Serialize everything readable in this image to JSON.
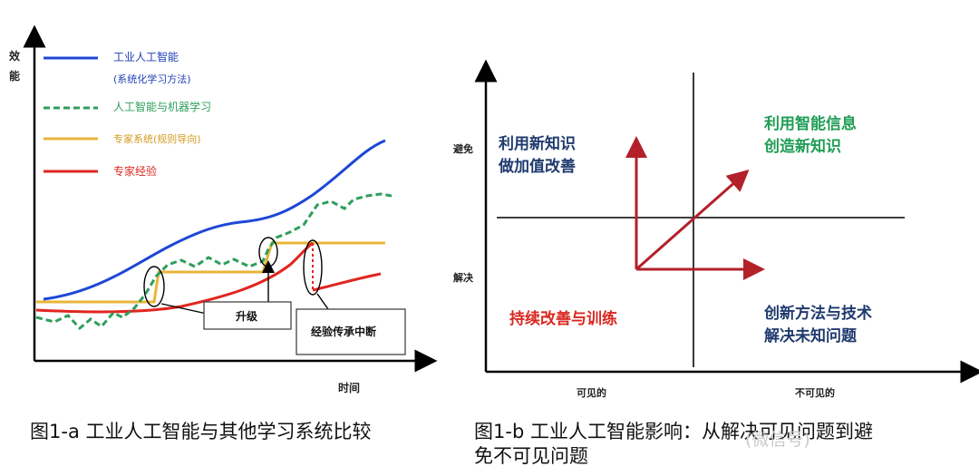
{
  "left": {
    "y_axis_label": [
      "效",
      "能"
    ],
    "x_axis_label": "时间",
    "legend": [
      {
        "label": "工业人工智能",
        "sub": "(系统化学习方法)",
        "color": "#1f47d6",
        "dashed": false
      },
      {
        "label": "人工智能与机器学习",
        "sub": "",
        "color": "#2e9e5b",
        "dashed": true
      },
      {
        "label": "专家系统(规则导向)",
        "sub": "",
        "color": "#e8b53a",
        "dashed": false
      },
      {
        "label": "专家经验",
        "sub": "",
        "color": "#e0261f",
        "dashed": false
      }
    ],
    "callouts": {
      "upgrade": "升级",
      "break": "经验传承中断"
    },
    "caption": "图1-a 工业人工智能与其他学习系统比较"
  },
  "right": {
    "y_labels": {
      "top": "避免",
      "bottom": "解决"
    },
    "x_labels": {
      "left": "可见的",
      "right": "不可见的"
    },
    "quadrants": {
      "top_left": [
        "利用新知识",
        "做加值改善"
      ],
      "top_right": [
        "利用智能信息",
        "创造新知识"
      ],
      "bottom_left": [
        "持续改善与训练"
      ],
      "bottom_right": [
        "创新方法与技术",
        "解决未知问题"
      ]
    },
    "quadrant_colors": {
      "top_left": "#1f3a6e",
      "top_right": "#1f9d55",
      "bottom_left": "#d9271f",
      "bottom_right": "#1f3a6e"
    },
    "arrow_color": "#b3202a",
    "caption": "图1-b 工业人工智能影响：从解决可见问题到避免不可见问题"
  },
  "watermark": "(微信号)"
}
